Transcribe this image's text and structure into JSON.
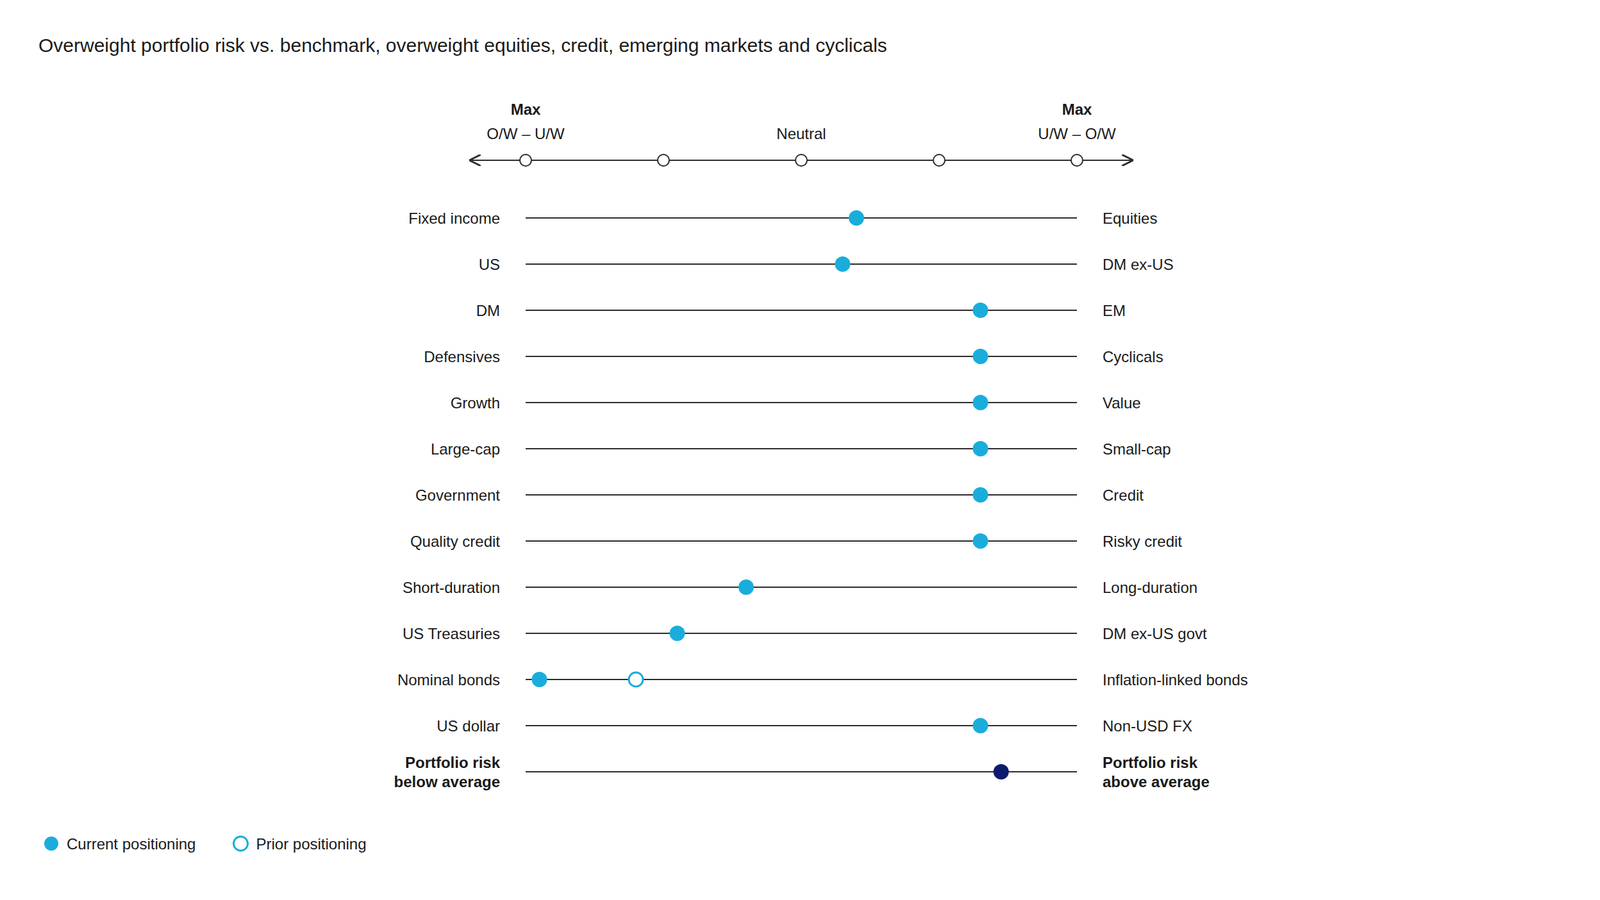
{
  "chart_data": {
    "type": "dot",
    "title": "Overweight portfolio risk vs. benchmark, overweight equities, credit, emerging markets and cyclicals",
    "categories": [
      "Fixed income",
      "US",
      "DM",
      "Defensives",
      "Growth",
      "Large-cap",
      "Government",
      "Quality credit",
      "Short-duration",
      "US Treasuries",
      "Nominal bonds",
      "US dollar",
      "Portfolio risk\nbelow average"
    ],
    "right_categories": [
      "Equities",
      "DM ex-US",
      "EM",
      "Cyclicals",
      "Value",
      "Small-cap",
      "Credit",
      "Risky credit",
      "Long-duration",
      "DM ex-US govt",
      "Inflation-linked bonds",
      "Non-USD FX",
      "Portfolio risk\nabove average"
    ],
    "series": [
      {
        "name": "Current positioning",
        "color": "#1aaddc",
        "marker": "circle",
        "colors": [
          "#1aaddc",
          "#1aaddc",
          "#1aaddc",
          "#1aaddc",
          "#1aaddc",
          "#1aaddc",
          "#1aaddc",
          "#1aaddc",
          "#1aaddc",
          "#1aaddc",
          "#1aaddc",
          "#1aaddc",
          "#0d1b6e"
        ],
        "values": [
          0.8,
          0.6,
          2.6,
          2.6,
          2.6,
          2.6,
          2.6,
          2.6,
          -0.8,
          -1.8,
          -3.8,
          2.6,
          2.9
        ]
      },
      {
        "name": "Prior positioning",
        "color": "#1aaddc",
        "marker": "open-circle",
        "values": [
          null,
          null,
          null,
          null,
          null,
          null,
          null,
          null,
          null,
          null,
          -2.4,
          null,
          null
        ]
      }
    ],
    "xlim": [
      -4,
      4
    ],
    "xticks": [
      -4,
      -2,
      0,
      2,
      4
    ],
    "tick_labels": false,
    "annotations": [
      {
        "x": -4,
        "text": "Max"
      },
      {
        "x": -4,
        "text": "O/W – U/W"
      },
      {
        "x": 0,
        "text": "Neutral"
      },
      {
        "x": 4,
        "text": "Max"
      },
      {
        "x": 4,
        "text": "U/W – O/W"
      }
    ],
    "legend": "lower left",
    "grid": false
  }
}
